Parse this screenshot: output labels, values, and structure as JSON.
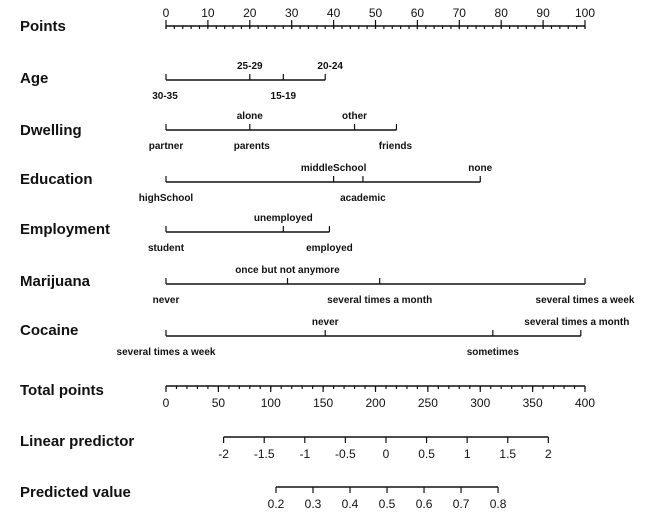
{
  "chart_data": {
    "type": "nomogram",
    "rows": [
      {
        "kind": "scale",
        "label": "Points",
        "ticks": [
          0,
          10,
          20,
          30,
          40,
          50,
          60,
          70,
          80,
          90,
          100
        ],
        "minor_step": 2,
        "range": [
          0,
          100
        ]
      },
      {
        "kind": "categorical",
        "label": "Age",
        "categories": [
          {
            "name": "30-35",
            "points": 0
          },
          {
            "name": "25-29",
            "points": 20
          },
          {
            "name": "15-19",
            "points": 28
          },
          {
            "name": "20-24",
            "points": 38
          }
        ]
      },
      {
        "kind": "categorical",
        "label": "Dwelling",
        "categories": [
          {
            "name": "partner",
            "points": 0
          },
          {
            "name": "alone",
            "points": 20
          },
          {
            "name": "parents",
            "points": 20
          },
          {
            "name": "other",
            "points": 45
          },
          {
            "name": "friends",
            "points": 55
          }
        ]
      },
      {
        "kind": "categorical",
        "label": "Education",
        "categories": [
          {
            "name": "highSchool",
            "points": 0
          },
          {
            "name": "middleSchool",
            "points": 40
          },
          {
            "name": "academic",
            "points": 47
          },
          {
            "name": "none",
            "points": 75
          }
        ]
      },
      {
        "kind": "categorical",
        "label": "Employment",
        "categories": [
          {
            "name": "student",
            "points": 0
          },
          {
            "name": "unemployed",
            "points": 28
          },
          {
            "name": "employed",
            "points": 39
          }
        ]
      },
      {
        "kind": "categorical",
        "label": "Marijuana",
        "categories": [
          {
            "name": "never",
            "points": 0
          },
          {
            "name": "once but not anymore",
            "points": 29
          },
          {
            "name": "several times a month",
            "points": 51
          },
          {
            "name": "several times a week",
            "points": 100
          }
        ]
      },
      {
        "kind": "categorical",
        "label": "Cocaine",
        "categories": [
          {
            "name": "several times a week",
            "points": 0
          },
          {
            "name": "never",
            "points": 38
          },
          {
            "name": "sometimes",
            "points": 78
          },
          {
            "name": "several times a month",
            "points": 99
          }
        ]
      },
      {
        "kind": "scale",
        "label": "Total points",
        "ticks": [
          0,
          50,
          100,
          150,
          200,
          250,
          300,
          350,
          400
        ],
        "minor_step": 10,
        "range": [
          0,
          400
        ]
      },
      {
        "kind": "scale",
        "label": "Linear predictor",
        "ticks": [
          "-2",
          "-1.5",
          "-1",
          "-0.5",
          "0",
          "0.5",
          "1",
          "1.5",
          "2"
        ],
        "tick_values": [
          -2,
          -1.5,
          -1,
          -0.5,
          0,
          0.5,
          1,
          1.5,
          2
        ],
        "total_points_at_ends": [
          55,
          365
        ]
      },
      {
        "kind": "scale",
        "label": "Predicted value",
        "ticks": [
          "0.2",
          "0.3",
          "0.4",
          "0.5",
          "0.6",
          "0.7",
          "0.8"
        ],
        "tick_values": [
          0.2,
          0.3,
          0.4,
          0.5,
          0.6,
          0.7,
          0.8
        ],
        "total_points_at_ends": [
          105,
          317
        ]
      }
    ]
  }
}
